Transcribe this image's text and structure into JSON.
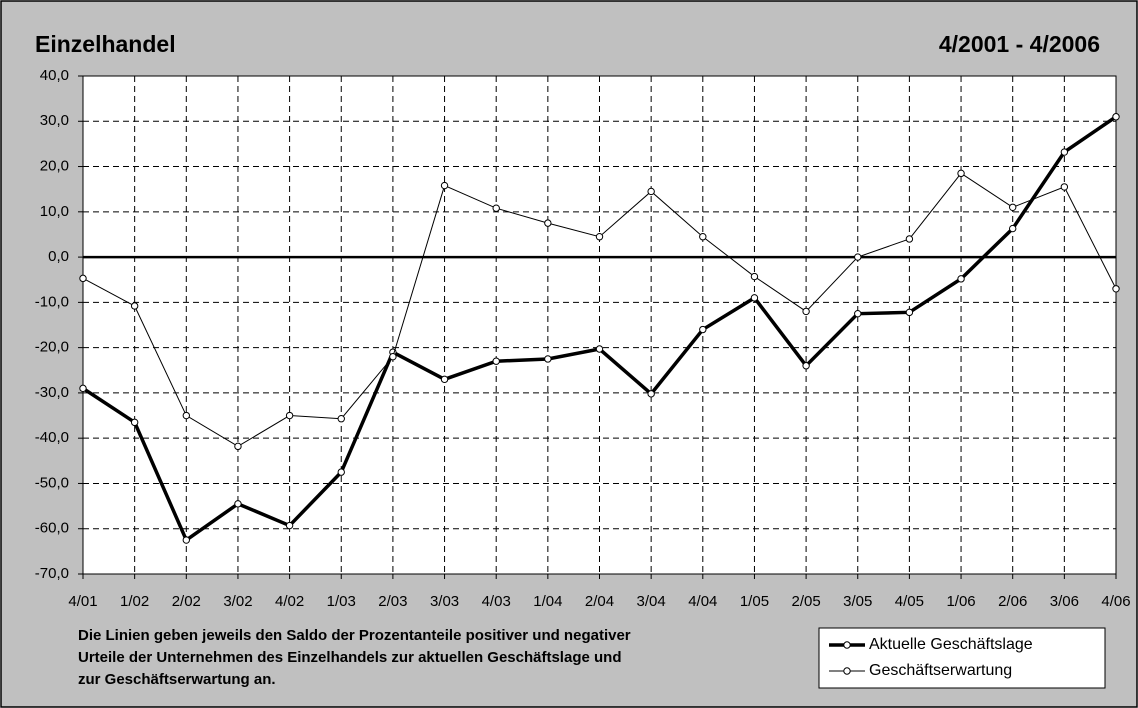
{
  "chart_data": {
    "type": "line",
    "title": "Einzelhandel",
    "subtitle": "4/2001 - 4/2006",
    "note": [
      "Die Linien geben jeweils den Saldo der Prozentanteile positiver und negativer",
      "Urteile der Unternehmen des Einzelhandels zur aktuellen Geschäftslage und",
      "zur Geschäftserwartung an."
    ],
    "categories": [
      "4/01",
      "1/02",
      "2/02",
      "3/02",
      "4/02",
      "1/03",
      "2/03",
      "3/03",
      "4/03",
      "1/04",
      "2/04",
      "3/04",
      "4/04",
      "1/05",
      "2/05",
      "3/05",
      "4/05",
      "1/06",
      "2/06",
      "3/06",
      "4/06"
    ],
    "series": [
      {
        "name": "Aktuelle Geschäftslage",
        "color": "#000000",
        "width": 3.5,
        "values": [
          -29,
          -36.5,
          -62.5,
          -54.5,
          -59.3,
          -47.5,
          -21,
          -27,
          -23,
          -22.5,
          -20.3,
          -30.2,
          -16,
          -9,
          -24,
          -12.5,
          -12.2,
          -4.8,
          6.3,
          23.2,
          31
        ]
      },
      {
        "name": "Geschäftserwartung",
        "color": "#000000",
        "width": 1,
        "values": [
          -4.7,
          -10.8,
          -35,
          -41.8,
          -35,
          -35.7,
          -22,
          15.8,
          10.8,
          7.5,
          4.5,
          14.5,
          4.5,
          -4.3,
          -12,
          0,
          4,
          18.5,
          11,
          15.5,
          -7
        ]
      }
    ],
    "ylim": [
      -70,
      40
    ],
    "yticks": [
      {
        "value": -70,
        "label": "-70,0"
      },
      {
        "value": -60,
        "label": "-60,0"
      },
      {
        "value": -50,
        "label": "-50,0"
      },
      {
        "value": -40,
        "label": "-40,0"
      },
      {
        "value": -30,
        "label": "-30,0"
      },
      {
        "value": -20,
        "label": "-20,0"
      },
      {
        "value": -10,
        "label": "-10,0"
      },
      {
        "value": 0,
        "label": "0,0"
      },
      {
        "value": 10,
        "label": "10,0"
      },
      {
        "value": 20,
        "label": "20,0"
      },
      {
        "value": 30,
        "label": "30,0"
      },
      {
        "value": 40,
        "label": "40,0"
      }
    ],
    "grid": true,
    "legend": "bottom-right"
  }
}
